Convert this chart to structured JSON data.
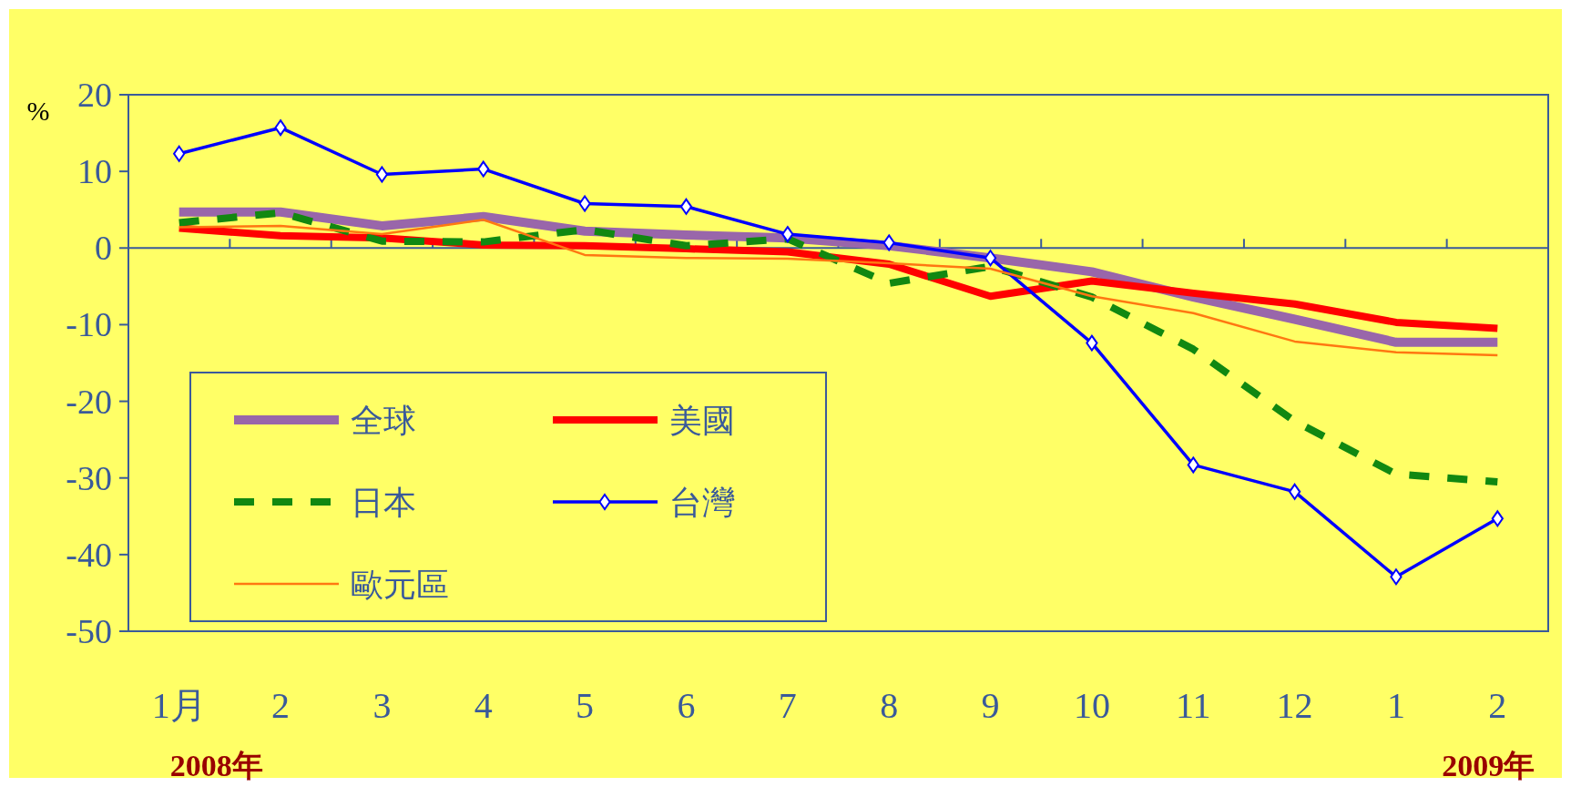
{
  "chart_data": {
    "type": "line",
    "ylabel": "%",
    "categories": [
      "1月",
      "2",
      "3",
      "4",
      "5",
      "6",
      "7",
      "8",
      "9",
      "10",
      "11",
      "12",
      "1",
      "2"
    ],
    "ylim": [
      -50,
      20
    ],
    "yticks": [
      -50,
      -40,
      -30,
      -20,
      -10,
      0,
      10,
      20
    ],
    "legend": "bottom left",
    "ref_lines": [
      {
        "axis": "y",
        "value": 0,
        "color": "#3a5a9a"
      }
    ],
    "series": [
      {
        "name": "全球",
        "color": "#9966aa",
        "line_style": "solid",
        "marker": "none",
        "values": [
          4.7,
          4.7,
          2.9,
          4.1,
          2.2,
          1.7,
          1.3,
          0.3,
          -1.3,
          -3.1,
          -6.4,
          -9.3,
          -12.3,
          -12.3
        ]
      },
      {
        "name": "美國",
        "color": "#ff0000",
        "line_style": "solid",
        "marker": "none",
        "values": [
          2.6,
          1.6,
          1.3,
          0.4,
          0.3,
          -0.1,
          -0.5,
          -2.1,
          -6.3,
          -4.3,
          -5.9,
          -7.3,
          -9.7,
          -10.5
        ]
      },
      {
        "name": "日本",
        "color": "#118811",
        "line_style": "dashed",
        "marker": "none",
        "values": [
          3.3,
          4.6,
          0.9,
          0.8,
          2.4,
          0.3,
          1.2,
          -4.6,
          -2.4,
          -6.4,
          -13.2,
          -22.6,
          -29.5,
          -30.5
        ]
      },
      {
        "name": "台灣",
        "color": "#0000ff",
        "line_style": "solid",
        "marker": "diamond",
        "values": [
          12.3,
          15.7,
          9.6,
          10.3,
          5.8,
          5.4,
          1.8,
          0.7,
          -1.3,
          -12.4,
          -28.3,
          -31.8,
          -42.9,
          -35.3
        ]
      },
      {
        "name": "歐元區",
        "color": "#ff7711",
        "line_style": "solid",
        "marker": "none",
        "values": [
          2.7,
          2.9,
          1.8,
          3.7,
          -0.9,
          -1.3,
          -1.4,
          -2.0,
          -2.7,
          -6.3,
          -8.5,
          -12.2,
          -13.6,
          -14.0
        ]
      }
    ],
    "annotations": [
      "2008年",
      "2009年"
    ]
  }
}
